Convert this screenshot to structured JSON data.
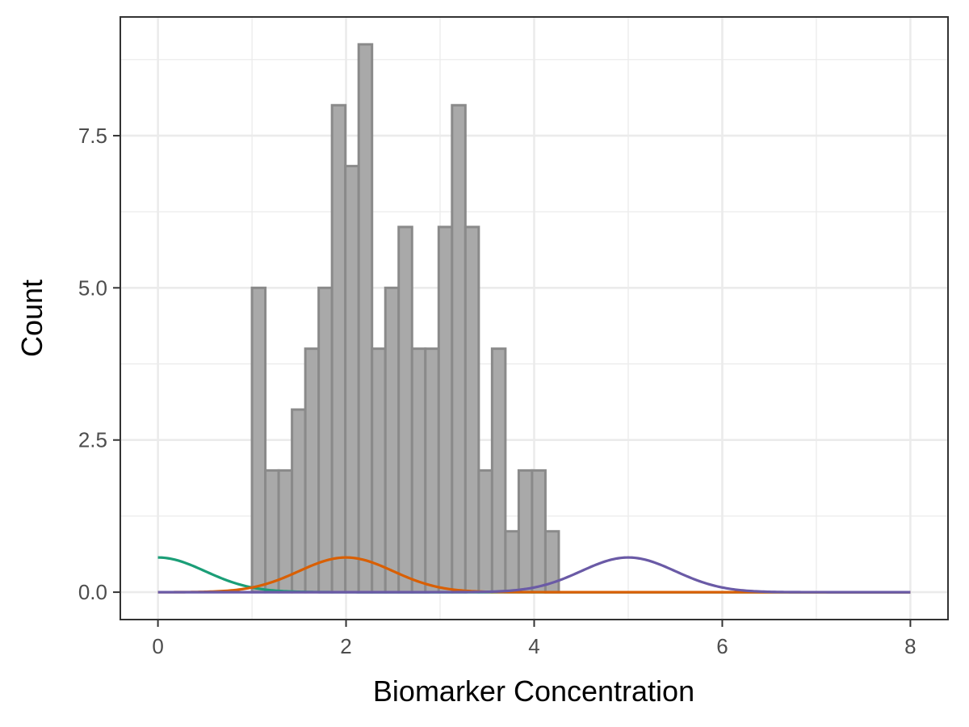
{
  "chart_data": {
    "type": "bar",
    "title": "",
    "xlabel": "Biomarker Concentration",
    "ylabel": "Count",
    "xlim": [
      -0.4,
      8.4
    ],
    "ylim": [
      -0.45,
      9.45
    ],
    "x_ticks": [
      0,
      2,
      4,
      6,
      8
    ],
    "x_minor_ticks": [
      1,
      3,
      5,
      7
    ],
    "y_ticks": [
      0.0,
      2.5,
      5.0,
      7.5
    ],
    "y_tick_labels": [
      "0.0",
      "2.5",
      "5.0",
      "7.5"
    ],
    "y_minor_ticks": [
      1.25,
      3.75,
      6.25,
      8.75
    ],
    "grid": true,
    "histogram": {
      "bin_width": 0.1418,
      "bin_start": 1.0,
      "counts": [
        5,
        2,
        2,
        3,
        4,
        5,
        8,
        7,
        9,
        4,
        5,
        6,
        4,
        4,
        6,
        8,
        6,
        2,
        4,
        1,
        2,
        2,
        1
      ],
      "fill": "#a9a9a9",
      "stroke": "#8a8a8a"
    },
    "series": [
      {
        "mean": 0,
        "sd": 0.5,
        "peak": 0.57,
        "color": "#1b9e77"
      },
      {
        "mean": 2,
        "sd": 0.5,
        "peak": 0.57,
        "color": "#d95f02"
      },
      {
        "mean": 5,
        "sd": 0.5,
        "peak": 0.57,
        "color": "#6a5aa6"
      }
    ],
    "curve_x_range": [
      0,
      8
    ]
  }
}
